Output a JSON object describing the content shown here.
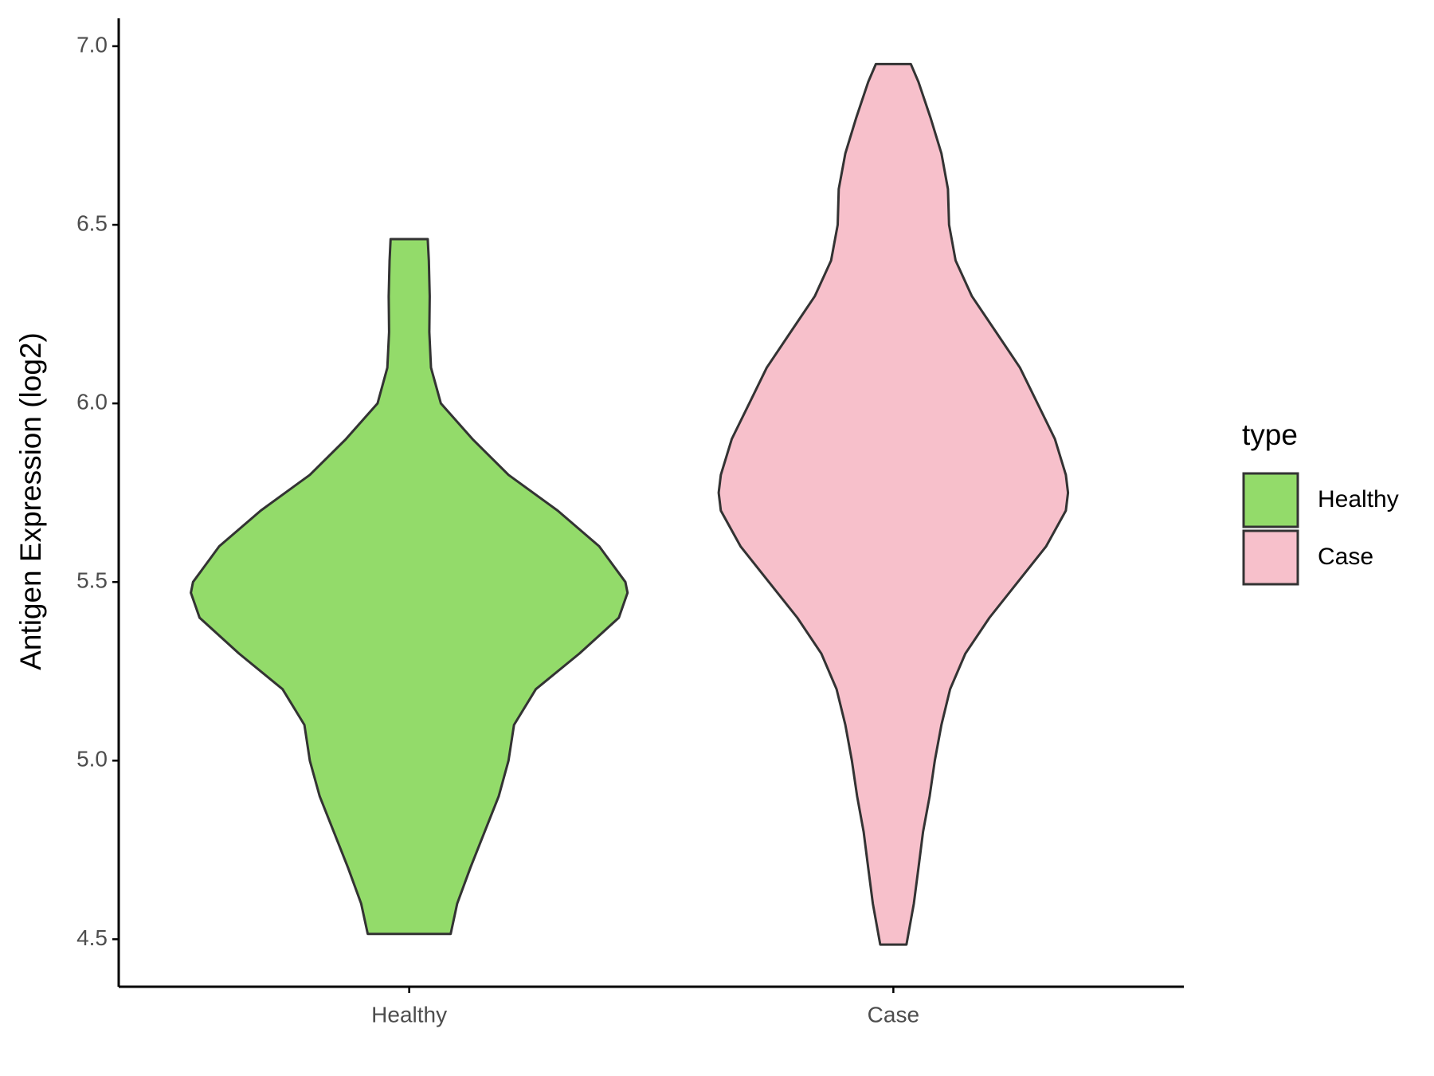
{
  "chart_data": {
    "type": "violin",
    "y_axis_label": "Antigen Expression (log2)",
    "categories": [
      "Healthy",
      "Case"
    ],
    "legend_title": "type",
    "legend_position": "right",
    "ylim": [
      4.367,
      7.078
    ],
    "yticks": [
      4.5,
      {
        "value": 5,
        "label": "5.0"
      },
      5.5,
      {
        "value": 6,
        "label": "6.0"
      },
      6.5,
      {
        "value": 7,
        "label": "7.0"
      }
    ],
    "series": [
      {
        "name": "Healthy",
        "color": "#93db6a",
        "y": [
          4.515,
          4.6,
          4.7,
          4.8,
          4.9,
          5.0,
          5.1,
          5.2,
          5.3,
          5.4,
          5.47,
          5.5,
          5.6,
          5.7,
          5.8,
          5.9,
          6.0,
          6.1,
          6.2,
          6.3,
          6.4,
          6.46
        ],
        "density": [
          0.19,
          0.22,
          0.28,
          0.345,
          0.41,
          0.455,
          0.48,
          0.58,
          0.78,
          0.96,
          1.0,
          0.99,
          0.87,
          0.68,
          0.455,
          0.29,
          0.145,
          0.1,
          0.092,
          0.094,
          0.09,
          0.085
        ]
      },
      {
        "name": "Case",
        "color": "#f7c0cb",
        "y": [
          4.485,
          4.6,
          4.7,
          4.8,
          4.9,
          5.0,
          5.1,
          5.2,
          5.3,
          5.4,
          5.5,
          5.6,
          5.7,
          5.75,
          5.8,
          5.9,
          6.0,
          6.1,
          6.2,
          6.3,
          6.4,
          6.5,
          6.6,
          6.7,
          6.8,
          6.9,
          6.95
        ],
        "density": [
          0.06,
          0.094,
          0.115,
          0.136,
          0.166,
          0.19,
          0.22,
          0.26,
          0.33,
          0.44,
          0.57,
          0.7,
          0.79,
          0.8,
          0.79,
          0.74,
          0.66,
          0.58,
          0.47,
          0.36,
          0.285,
          0.255,
          0.25,
          0.22,
          0.17,
          0.115,
          0.08
        ]
      }
    ]
  }
}
